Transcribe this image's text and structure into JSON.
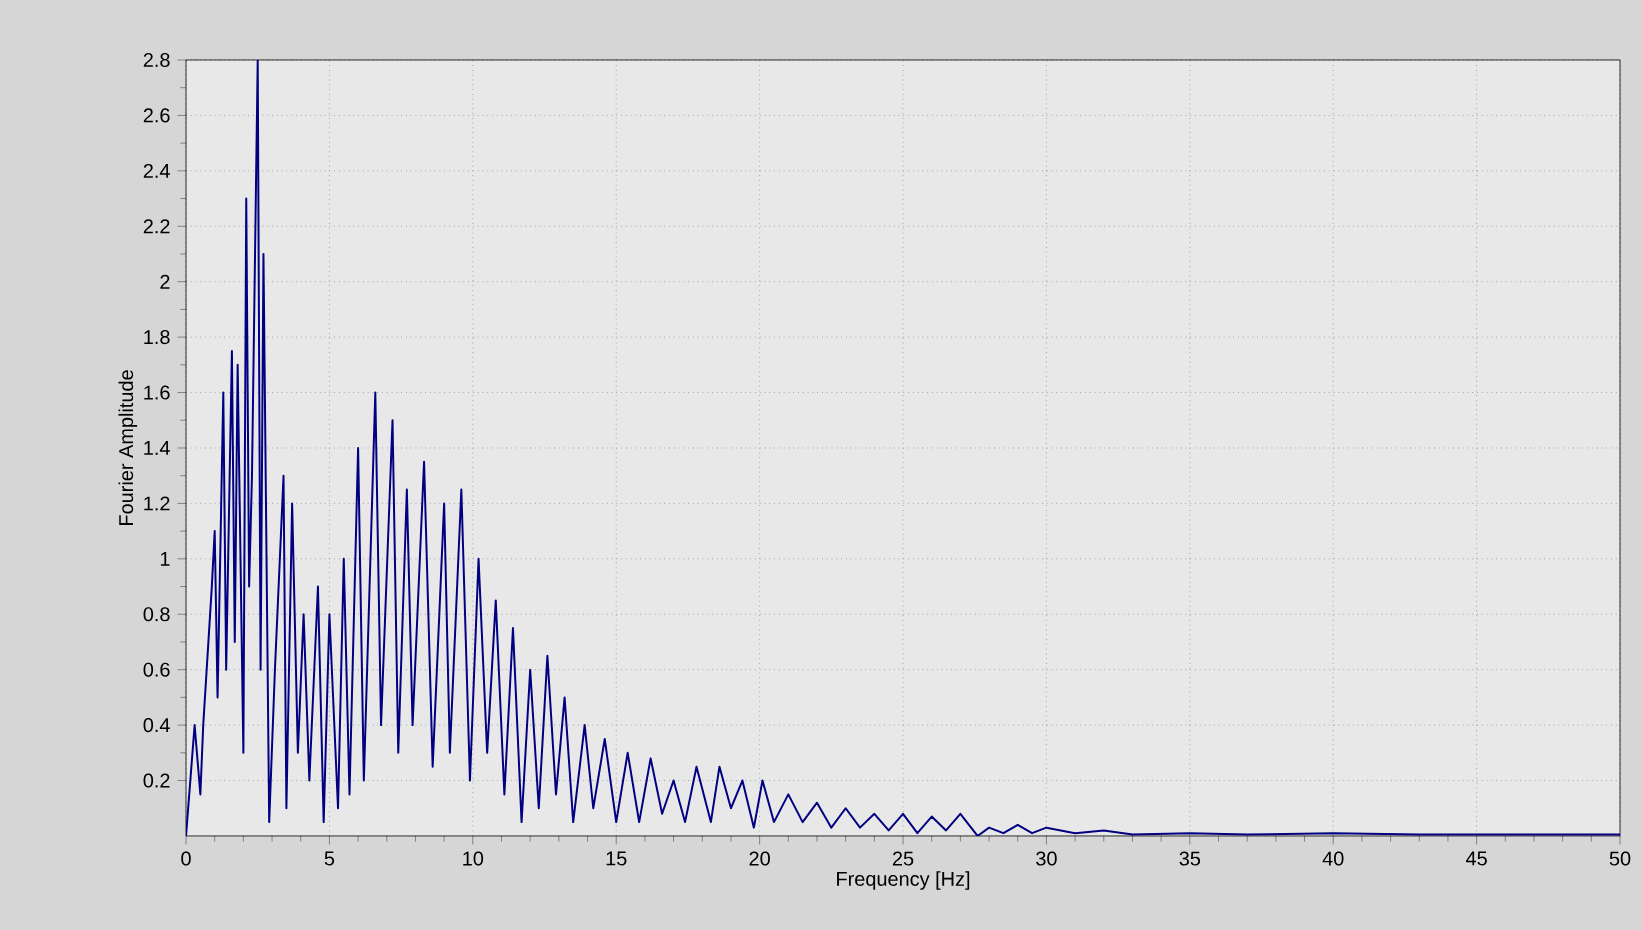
{
  "chart_data": {
    "type": "line",
    "xlabel": "Frequency [Hz]",
    "ylabel": "Fourier Amplitude",
    "xlim": [
      0,
      50
    ],
    "ylim": [
      0,
      2.8
    ],
    "xticks": [
      0,
      5,
      10,
      15,
      20,
      25,
      30,
      35,
      40,
      45,
      50
    ],
    "yticks": [
      0.2,
      0.4,
      0.6,
      0.8,
      1,
      1.2,
      1.4,
      1.6,
      1.8,
      2,
      2.2,
      2.4,
      2.6,
      2.8
    ],
    "grid": true,
    "marker": "none",
    "line_style": "solid",
    "series": [
      {
        "color": "#000080",
        "x": [
          0,
          0.3,
          0.5,
          0.6,
          0.9,
          1.0,
          1.1,
          1.3,
          1.4,
          1.6,
          1.7,
          1.8,
          2.0,
          2.1,
          2.2,
          2.3,
          2.5,
          2.6,
          2.7,
          2.9,
          3.1,
          3.4,
          3.5,
          3.7,
          3.9,
          4.1,
          4.3,
          4.6,
          4.8,
          5.0,
          5.3,
          5.5,
          5.7,
          6.0,
          6.2,
          6.6,
          6.8,
          7.2,
          7.4,
          7.7,
          7.9,
          8.3,
          8.6,
          9.0,
          9.2,
          9.6,
          9.9,
          10.2,
          10.5,
          10.8,
          11.1,
          11.4,
          11.7,
          12.0,
          12.3,
          12.6,
          12.9,
          13.2,
          13.5,
          13.9,
          14.2,
          14.6,
          15,
          15.4,
          15.8,
          16.2,
          16.6,
          17,
          17.4,
          17.8,
          18.3,
          18.6,
          19,
          19.4,
          19.8,
          20.1,
          20.5,
          21,
          21.5,
          22,
          22.5,
          23,
          23.5,
          24,
          24.5,
          25,
          25.5,
          26,
          26.5,
          27,
          27.6,
          28,
          28.5,
          29,
          29.5,
          30,
          31,
          32,
          33,
          35,
          37,
          40,
          43,
          45,
          50
        ],
        "values": [
          0,
          0.4,
          0.15,
          0.4,
          0.9,
          1.1,
          0.5,
          1.6,
          0.6,
          1.75,
          0.7,
          1.7,
          0.3,
          2.3,
          0.9,
          1.3,
          2.8,
          0.6,
          2.1,
          0.05,
          0.6,
          1.3,
          0.1,
          1.2,
          0.3,
          0.8,
          0.2,
          0.9,
          0.05,
          0.8,
          0.1,
          1.0,
          0.15,
          1.4,
          0.2,
          1.6,
          0.4,
          1.5,
          0.3,
          1.25,
          0.4,
          1.35,
          0.25,
          1.2,
          0.3,
          1.25,
          0.2,
          1.0,
          0.3,
          0.85,
          0.15,
          0.75,
          0.05,
          0.6,
          0.1,
          0.65,
          0.15,
          0.5,
          0.05,
          0.4,
          0.1,
          0.35,
          0.05,
          0.3,
          0.05,
          0.28,
          0.08,
          0.2,
          0.05,
          0.25,
          0.05,
          0.25,
          0.1,
          0.2,
          0.03,
          0.2,
          0.05,
          0.15,
          0.05,
          0.12,
          0.03,
          0.1,
          0.03,
          0.08,
          0.02,
          0.08,
          0.01,
          0.07,
          0.02,
          0.08,
          0,
          0.03,
          0.01,
          0.04,
          0.01,
          0.03,
          0.01,
          0.02,
          0.005,
          0.01,
          0.005,
          0.01,
          0.005,
          0.005,
          0.005
        ]
      }
    ]
  }
}
